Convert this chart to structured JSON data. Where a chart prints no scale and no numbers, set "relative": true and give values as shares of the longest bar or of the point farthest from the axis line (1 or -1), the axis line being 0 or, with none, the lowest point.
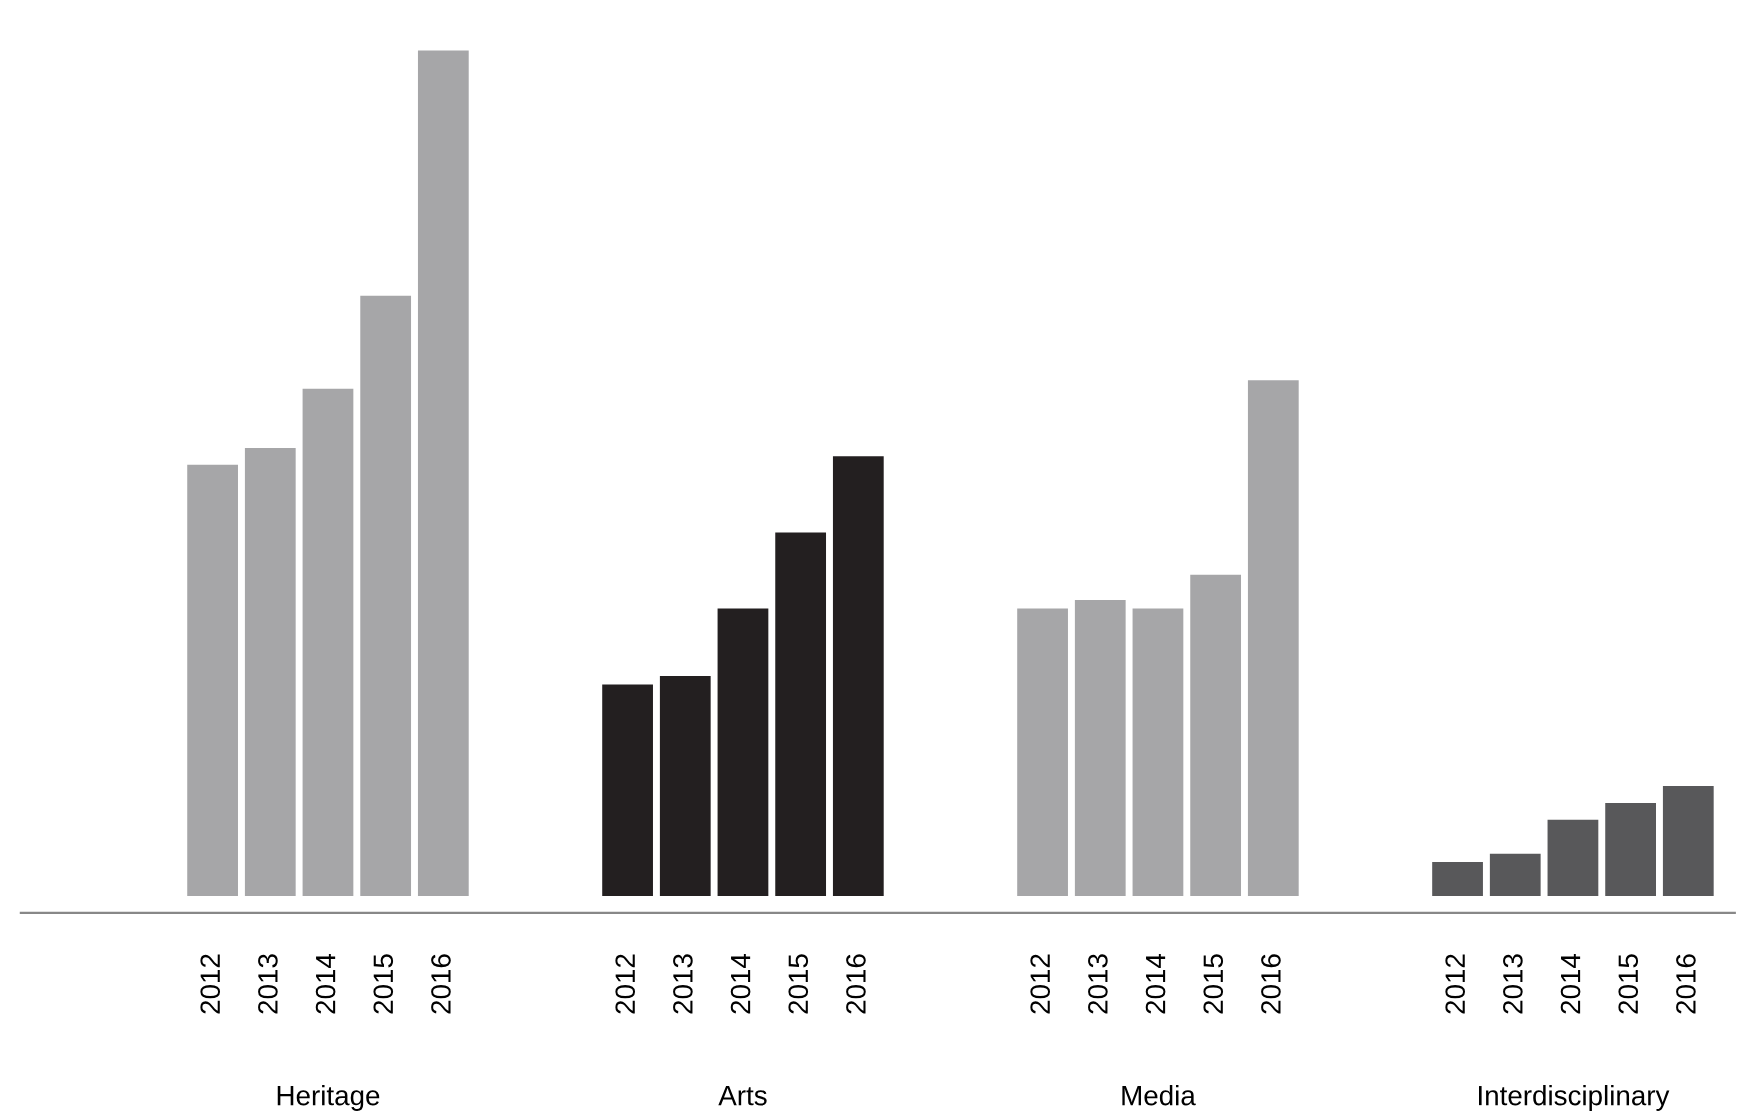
{
  "chart_data": {
    "type": "bar",
    "relative": true,
    "categories": [
      "Heritage",
      "Arts",
      "Media",
      "Interdisciplinary"
    ],
    "series": [
      {
        "name": "2012",
        "colors": [
          "#a6a6a8",
          "#231f20",
          "#a6a6a8",
          "#58585a"
        ],
        "values": [
          0.51,
          0.25,
          0.34,
          0.04
        ]
      },
      {
        "name": "2013",
        "colors": [
          "#a6a6a8",
          "#231f20",
          "#a6a6a8",
          "#58585a"
        ],
        "values": [
          0.53,
          0.26,
          0.35,
          0.05
        ]
      },
      {
        "name": "2014",
        "colors": [
          "#a6a6a8",
          "#231f20",
          "#a6a6a8",
          "#58585a"
        ],
        "values": [
          0.6,
          0.34,
          0.34,
          0.09
        ]
      },
      {
        "name": "2015",
        "colors": [
          "#a6a6a8",
          "#231f20",
          "#a6a6a8",
          "#58585a"
        ],
        "values": [
          0.71,
          0.43,
          0.38,
          0.11
        ]
      },
      {
        "name": "2016",
        "colors": [
          "#a6a6a8",
          "#231f20",
          "#a6a6a8",
          "#58585a"
        ],
        "values": [
          1,
          0.52,
          0.61,
          0.13
        ]
      }
    ],
    "grid": false,
    "legend": false
  }
}
